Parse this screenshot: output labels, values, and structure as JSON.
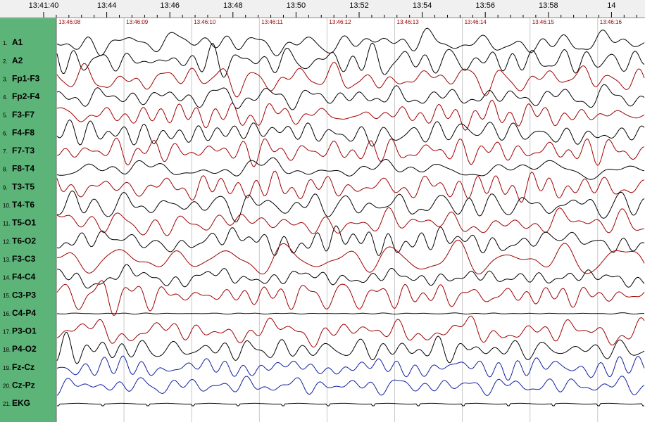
{
  "ruler": {
    "labels": [
      "13:41:40",
      "13:44",
      "13:46",
      "13:48",
      "13:50",
      "13:52",
      "13:54",
      "13:56",
      "13:58",
      "14"
    ]
  },
  "markers": [
    "13:46:08",
    "13:46:09",
    "13:46:10",
    "13:46:11",
    "13:46:12",
    "13:46:13",
    "13:46:14",
    "13:46:15",
    "13:46:16"
  ],
  "channels": [
    {
      "number": "1.",
      "name": "A1",
      "color": "#000000"
    },
    {
      "number": "2.",
      "name": "A2",
      "color": "#000000"
    },
    {
      "number": "3.",
      "name": "Fp1-F3",
      "color": "#a00000"
    },
    {
      "number": "4.",
      "name": "Fp2-F4",
      "color": "#000000"
    },
    {
      "number": "5.",
      "name": "F3-F7",
      "color": "#a00000"
    },
    {
      "number": "6.",
      "name": "F4-F8",
      "color": "#000000"
    },
    {
      "number": "7.",
      "name": "F7-T3",
      "color": "#a00000"
    },
    {
      "number": "8.",
      "name": "F8-T4",
      "color": "#000000"
    },
    {
      "number": "9.",
      "name": "T3-T5",
      "color": "#a00000"
    },
    {
      "number": "10.",
      "name": "T4-T6",
      "color": "#000000"
    },
    {
      "number": "11.",
      "name": "T5-O1",
      "color": "#a00000"
    },
    {
      "number": "12.",
      "name": "T6-O2",
      "color": "#000000"
    },
    {
      "number": "13.",
      "name": "F3-C3",
      "color": "#a00000"
    },
    {
      "number": "14.",
      "name": "F4-C4",
      "color": "#000000"
    },
    {
      "number": "15.",
      "name": "C3-P3",
      "color": "#a00000"
    },
    {
      "number": "16.",
      "name": "C4-P4",
      "color": "#000000"
    },
    {
      "number": "17.",
      "name": "P3-O1",
      "color": "#a00000"
    },
    {
      "number": "18.",
      "name": "P4-O2",
      "color": "#000000"
    },
    {
      "number": "19.",
      "name": "Fz-Cz",
      "color": "#1020a0"
    },
    {
      "number": "20.",
      "name": "Cz-Pz",
      "color": "#1020a0"
    },
    {
      "number": "21.",
      "name": "EKG",
      "color": "#000000"
    }
  ]
}
